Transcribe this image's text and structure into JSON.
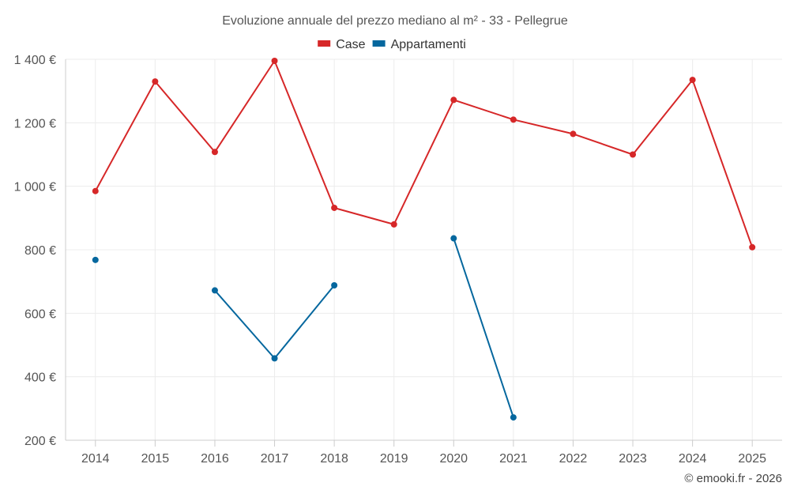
{
  "chart_data": {
    "type": "line",
    "title": "Evoluzione annuale del prezzo mediano al m² - 33 - Pellegrue",
    "categories": [
      "2014",
      "2015",
      "2016",
      "2017",
      "2018",
      "2019",
      "2020",
      "2021",
      "2022",
      "2023",
      "2024",
      "2025"
    ],
    "series": [
      {
        "name": "Case",
        "color": "#d62728",
        "values": [
          985,
          1330,
          1108,
          1395,
          932,
          880,
          1272,
          1210,
          1165,
          1100,
          1335,
          808
        ]
      },
      {
        "name": "Appartamenti",
        "color": "#05679e",
        "values": [
          768,
          null,
          672,
          458,
          688,
          null,
          836,
          272,
          null,
          null,
          null,
          null
        ]
      }
    ],
    "y_ticks": [
      "200 €",
      "400 €",
      "600 €",
      "800 €",
      "1 000 €",
      "1 200 €",
      "1 400 €"
    ],
    "y_tick_values": [
      200,
      400,
      600,
      800,
      1000,
      1200,
      1400
    ],
    "ylim": [
      200,
      1400
    ],
    "xlabel": "",
    "ylabel": "",
    "grid": true,
    "legend_position": "top-center"
  },
  "credit": "© emooki.fr - 2026"
}
